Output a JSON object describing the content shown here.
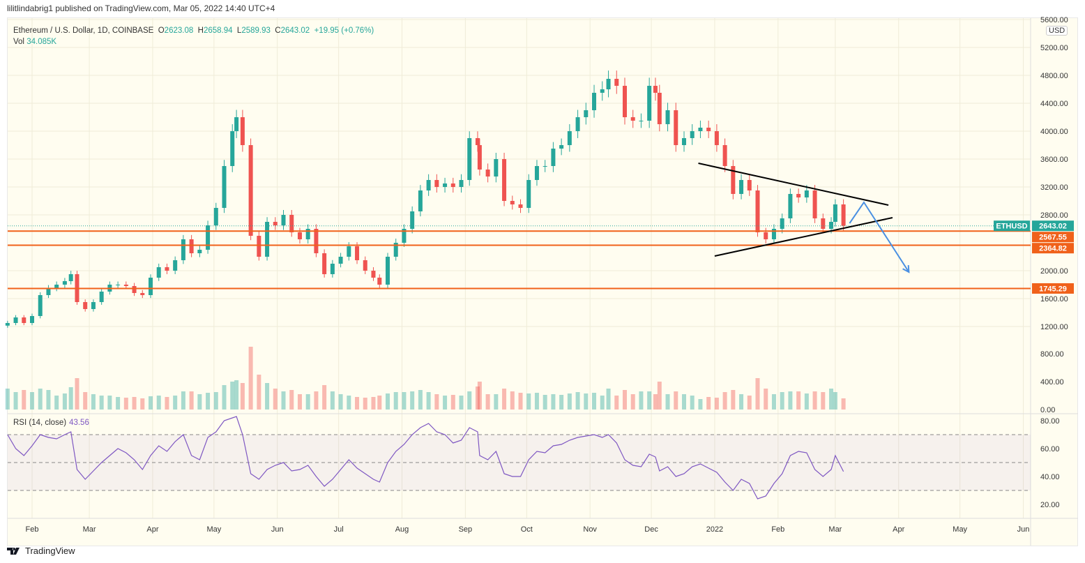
{
  "publisher_line": "lilitlindabrig1 published on TradingView.com, Mar 05, 2022 14:40 UTC+4",
  "legend": {
    "symbol": "Ethereum / U.S. Dollar, 1D, COINBASE",
    "o_label": "O",
    "o": "2623.08",
    "h_label": "H",
    "h": "2658.94",
    "l_label": "L",
    "l": "2589.93",
    "c_label": "C",
    "c": "2643.02",
    "change": "+19.95 (+0.76%)",
    "vol_label": "Vol",
    "vol": "34.085K"
  },
  "currency": "USD",
  "rsi": {
    "label": "RSI (14, close)",
    "value": "43.56"
  },
  "brand": "TradingView",
  "colors": {
    "up": "#26a69a",
    "down": "#ef5350",
    "level": "#f0611a",
    "rsi": "#7e57c2",
    "trend": "#000000",
    "arrow": "#4a90e2",
    "background": "#fffdf0"
  },
  "chart_data": {
    "type": "candlestick",
    "x_ticks": [
      [
        "2021-02-01",
        "Feb"
      ],
      [
        "2021-03-01",
        "Mar"
      ],
      [
        "2021-04-01",
        "Apr"
      ],
      [
        "2021-05-01",
        "May"
      ],
      [
        "2021-06-01",
        "Jun"
      ],
      [
        "2021-07-01",
        "Jul"
      ],
      [
        "2021-08-01",
        "Aug"
      ],
      [
        "2021-09-01",
        "Sep"
      ],
      [
        "2021-10-01",
        "Oct"
      ],
      [
        "2021-11-01",
        "Nov"
      ],
      [
        "2021-12-01",
        "Dec"
      ],
      [
        "2022-01-01",
        "2022"
      ],
      [
        "2022-02-01",
        "Feb"
      ],
      [
        "2022-03-01",
        "Mar"
      ],
      [
        "2022-04-01",
        "Apr"
      ],
      [
        "2022-05-01",
        "May"
      ],
      [
        "2022-06-01",
        "Jun"
      ]
    ],
    "price_ticks": [
      "5600.00",
      "5200.00",
      "4800.00",
      "4400.00",
      "4000.00",
      "3600.00",
      "3200.00",
      "2800.00",
      "2000.00",
      "1600.00",
      "1200.00"
    ],
    "volume_ticks": [
      "800.00",
      "400.00",
      "0.00"
    ],
    "rsi_ticks": [
      "80.00",
      "60.00",
      "40.00",
      "20.00"
    ],
    "rsi_bands": [
      70,
      50,
      30
    ],
    "last_price": {
      "label": "ETHUSD",
      "value": "2643.02"
    },
    "levels": [
      "2567.55",
      "2364.82",
      "1745.29"
    ],
    "trendlines": [
      [
        [
          "2021-12-24",
          3540
        ],
        [
          "2022-03-27",
          2940
        ]
      ],
      [
        [
          "2022-01-01",
          2210
        ],
        [
          "2022-03-29",
          2760
        ]
      ]
    ],
    "arrow": [
      [
        "2022-03-08",
        2680
      ],
      [
        "2022-03-15",
        2980
      ],
      [
        "2022-04-06",
        1980
      ]
    ],
    "dates": [
      "2021-01-20",
      "2021-01-24",
      "2021-01-28",
      "2021-02-01",
      "2021-02-05",
      "2021-02-09",
      "2021-02-13",
      "2021-02-17",
      "2021-02-20",
      "2021-02-23",
      "2021-02-27",
      "2021-03-03",
      "2021-03-07",
      "2021-03-11",
      "2021-03-15",
      "2021-03-19",
      "2021-03-23",
      "2021-03-27",
      "2021-03-31",
      "2021-04-04",
      "2021-04-08",
      "2021-04-12",
      "2021-04-16",
      "2021-04-20",
      "2021-04-24",
      "2021-04-28",
      "2021-05-02",
      "2021-05-06",
      "2021-05-10",
      "2021-05-12",
      "2021-05-15",
      "2021-05-19",
      "2021-05-23",
      "2021-05-27",
      "2021-05-31",
      "2021-06-04",
      "2021-06-08",
      "2021-06-12",
      "2021-06-16",
      "2021-06-20",
      "2021-06-24",
      "2021-06-28",
      "2021-07-02",
      "2021-07-06",
      "2021-07-10",
      "2021-07-14",
      "2021-07-18",
      "2021-07-21",
      "2021-07-25",
      "2021-07-29",
      "2021-08-02",
      "2021-08-06",
      "2021-08-10",
      "2021-08-14",
      "2021-08-18",
      "2021-08-22",
      "2021-08-26",
      "2021-08-30",
      "2021-09-03",
      "2021-09-07",
      "2021-09-08",
      "2021-09-12",
      "2021-09-16",
      "2021-09-20",
      "2021-09-24",
      "2021-09-28",
      "2021-10-02",
      "2021-10-06",
      "2021-10-10",
      "2021-10-14",
      "2021-10-18",
      "2021-10-22",
      "2021-10-26",
      "2021-10-30",
      "2021-11-03",
      "2021-11-07",
      "2021-11-10",
      "2021-11-14",
      "2021-11-18",
      "2021-11-22",
      "2021-11-26",
      "2021-11-30",
      "2021-12-03",
      "2021-12-05",
      "2021-12-09",
      "2021-12-13",
      "2021-12-17",
      "2021-12-21",
      "2021-12-25",
      "2021-12-29",
      "2022-01-02",
      "2022-01-06",
      "2022-01-10",
      "2022-01-14",
      "2022-01-18",
      "2022-01-22",
      "2022-01-26",
      "2022-01-30",
      "2022-02-03",
      "2022-02-07",
      "2022-02-11",
      "2022-02-15",
      "2022-02-19",
      "2022-02-23",
      "2022-02-27",
      "2022-03-01",
      "2022-03-05"
    ],
    "close": [
      1250,
      1330,
      1250,
      1350,
      1650,
      1750,
      1800,
      1850,
      1950,
      1550,
      1450,
      1550,
      1700,
      1800,
      1800,
      1780,
      1680,
      1650,
      1900,
      2050,
      2000,
      2150,
      2450,
      2250,
      2300,
      2650,
      2900,
      3500,
      4000,
      4200,
      3800,
      2500,
      2200,
      2700,
      2650,
      2800,
      2550,
      2450,
      2600,
      2250,
      1950,
      2100,
      2200,
      2350,
      2150,
      2000,
      1900,
      1800,
      2200,
      2400,
      2600,
      2850,
      3150,
      3300,
      3200,
      3250,
      3200,
      3300,
      3900,
      3800,
      3450,
      3350,
      3600,
      3000,
      2950,
      2900,
      3300,
      3500,
      3500,
      3750,
      3800,
      4000,
      4200,
      4300,
      4550,
      4600,
      4750,
      4650,
      4200,
      4150,
      4150,
      4650,
      4550,
      4100,
      4300,
      3800,
      3900,
      4000,
      4050,
      4000,
      3800,
      3500,
      3100,
      3300,
      3150,
      2550,
      2450,
      2600,
      2750,
      3100,
      3050,
      3150,
      2750,
      2600,
      2700,
      2950,
      2643.02
    ],
    "volume": [
      300,
      250,
      280,
      250,
      300,
      280,
      200,
      230,
      320,
      450,
      250,
      220,
      200,
      200,
      180,
      170,
      180,
      160,
      190,
      200,
      180,
      200,
      260,
      260,
      220,
      240,
      250,
      350,
      400,
      420,
      380,
      900,
      500,
      380,
      300,
      260,
      280,
      220,
      220,
      260,
      350,
      260,
      220,
      200,
      180,
      170,
      180,
      200,
      230,
      250,
      250,
      260,
      280,
      250,
      220,
      200,
      210,
      200,
      260,
      330,
      400,
      220,
      220,
      300,
      260,
      240,
      230,
      240,
      210,
      220,
      210,
      230,
      250,
      230,
      240,
      200,
      300,
      200,
      280,
      220,
      260,
      260,
      220,
      400,
      220,
      260,
      220,
      200,
      150,
      180,
      170,
      250,
      280,
      220,
      200,
      450,
      300,
      220,
      250,
      260,
      260,
      230,
      260,
      250,
      300,
      250,
      160
    ],
    "rsi": [
      70,
      60,
      55,
      62,
      70,
      68,
      67,
      70,
      72,
      45,
      38,
      44,
      50,
      55,
      60,
      57,
      52,
      45,
      55,
      62,
      58,
      65,
      70,
      55,
      52,
      68,
      72,
      80,
      82,
      83,
      70,
      42,
      38,
      45,
      48,
      50,
      44,
      45,
      48,
      40,
      33,
      38,
      45,
      52,
      46,
      42,
      38,
      36,
      50,
      58,
      63,
      70,
      75,
      78,
      72,
      70,
      64,
      66,
      75,
      72,
      55,
      52,
      58,
      42,
      40,
      40,
      52,
      58,
      57,
      62,
      63,
      66,
      68,
      69,
      70,
      68,
      70,
      64,
      52,
      48,
      47,
      56,
      54,
      44,
      47,
      40,
      42,
      47,
      49,
      46,
      43,
      36,
      30,
      38,
      35,
      24,
      26,
      35,
      42,
      55,
      58,
      57,
      45,
      40,
      45,
      55,
      43.56
    ]
  }
}
